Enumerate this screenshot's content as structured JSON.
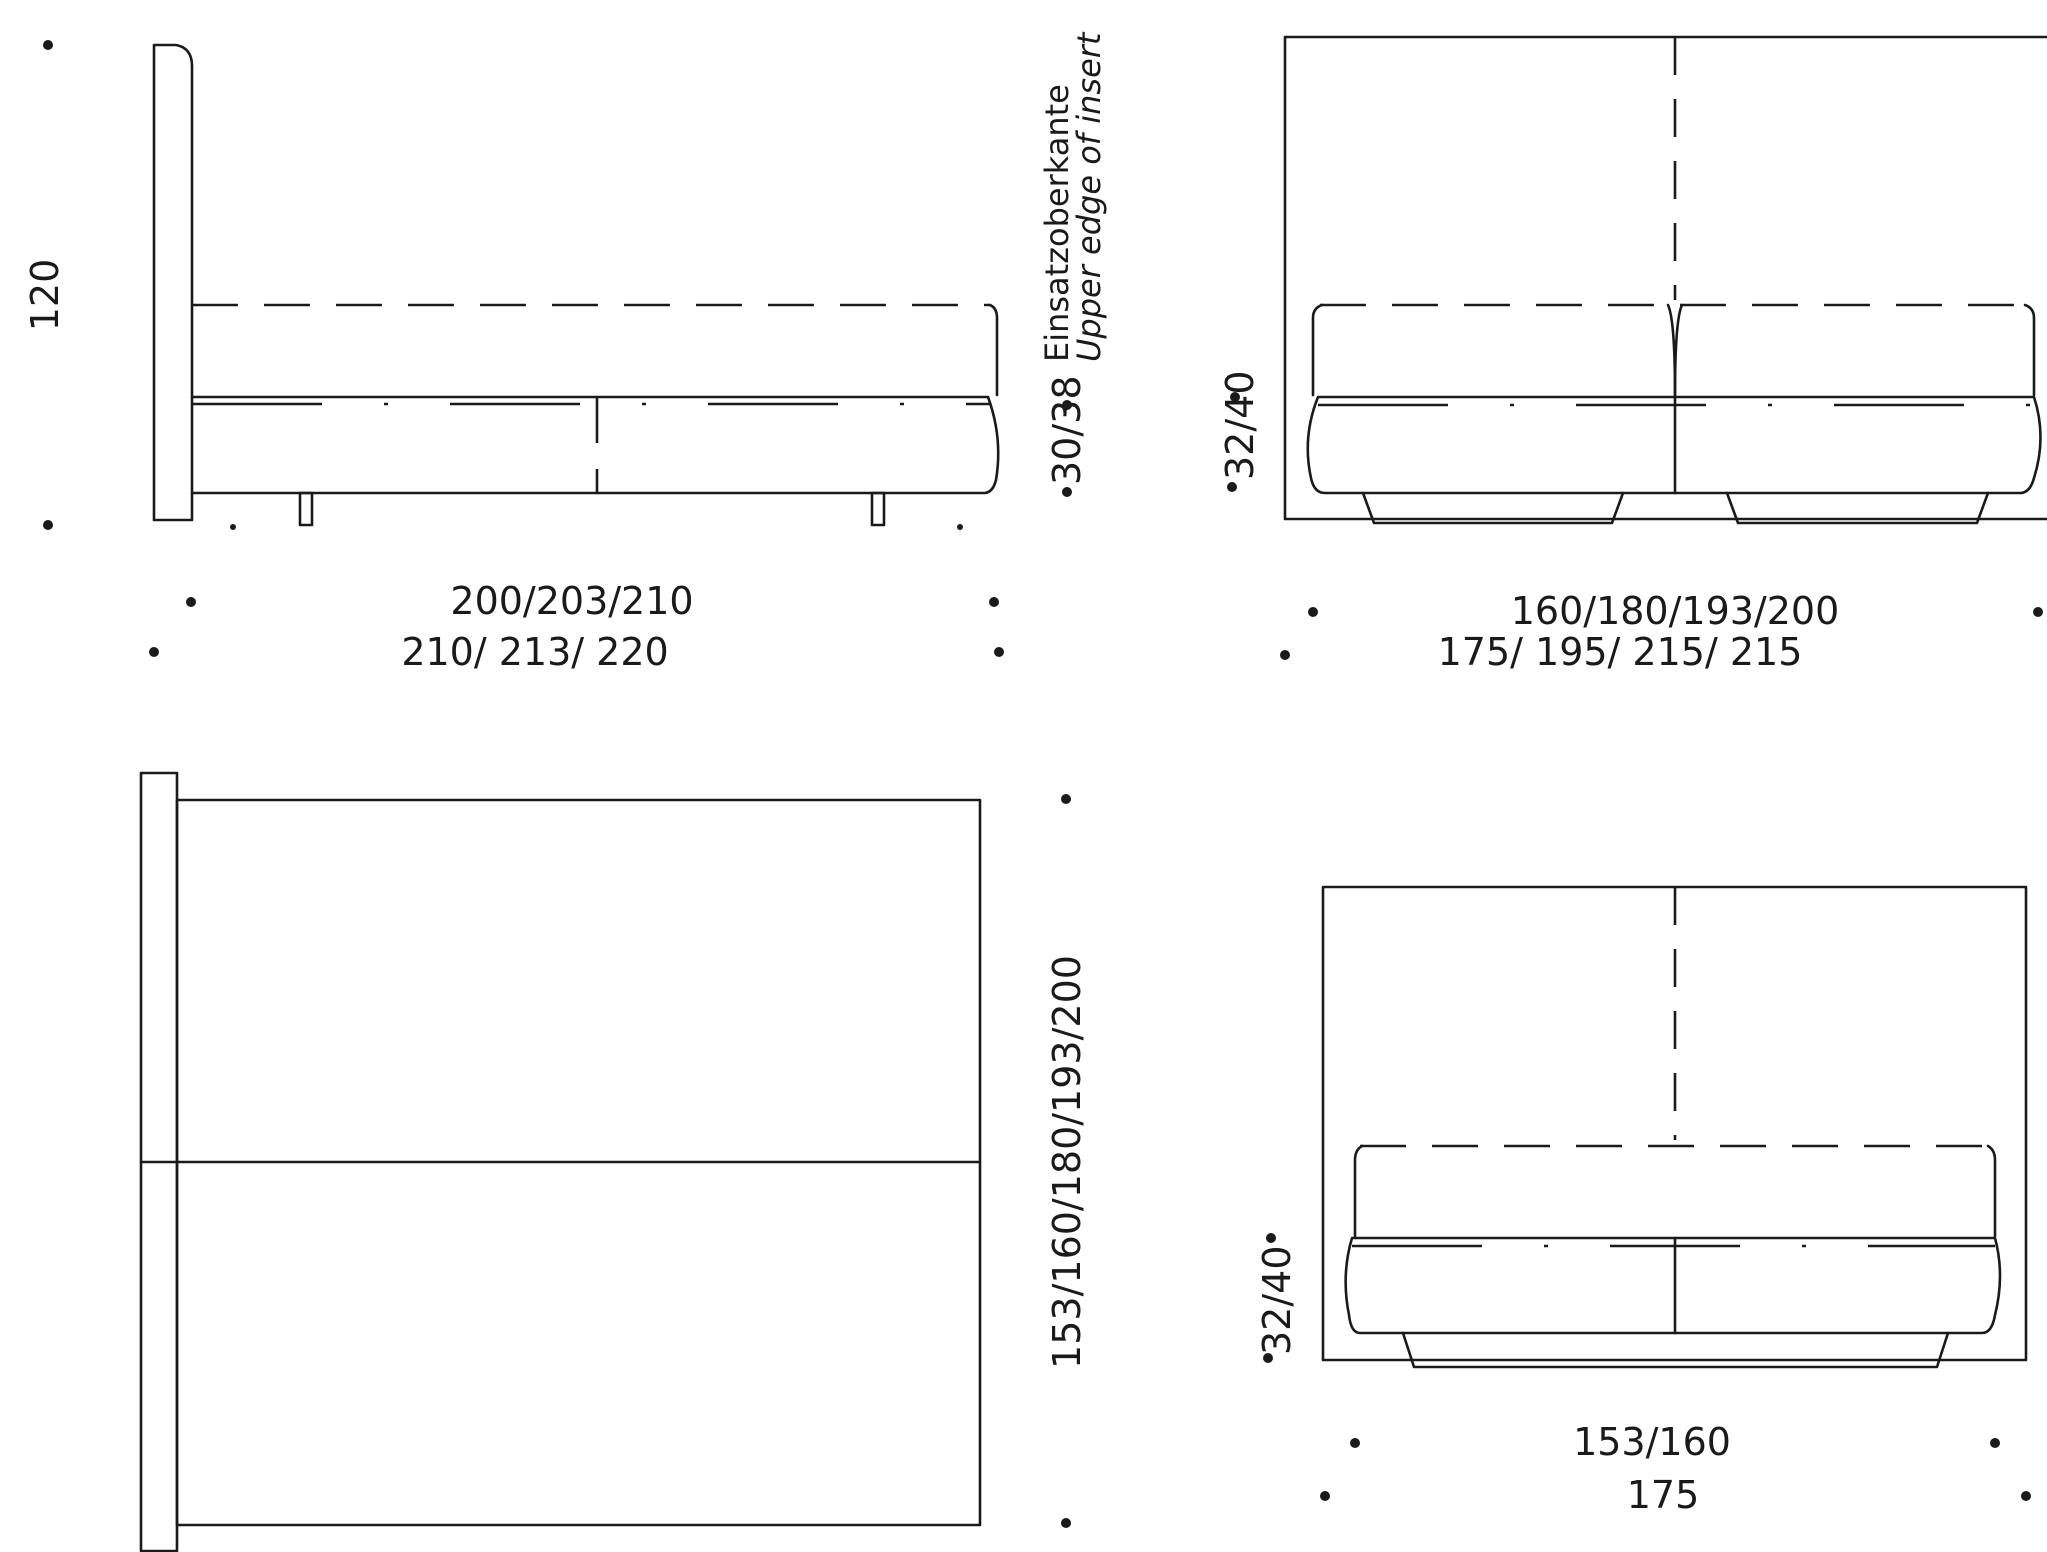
{
  "side_view": {
    "height_label": "120",
    "base_height_label": "30/38",
    "insert_label_de": "Einsatzoberkante",
    "insert_label_en": "Upper edge of insert",
    "inner_length_label": "200/203/210",
    "outer_length_label": "210/ 213/ 220"
  },
  "front_view": {
    "base_height_label": "32/40",
    "inner_width_label": "160/180/193/200",
    "outer_width_label": "175/ 195/ 215/ 215"
  },
  "top_view": {
    "width_label": "153/160/180/193/200"
  },
  "small_front_view": {
    "base_height_label": "32/40",
    "inner_width_label": "153/160",
    "outer_width_label": "175"
  }
}
